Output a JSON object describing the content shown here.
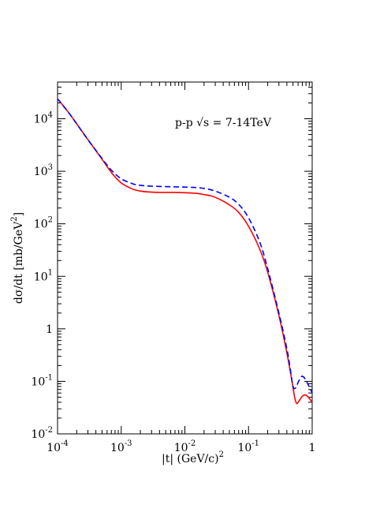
{
  "chart_data": {
    "type": "line",
    "title": "",
    "xlabel": "|t| (GeV/c)",
    "xlabel_sup": "2",
    "ylabel": "dσ/dt [mb/GeV",
    "ylabel_sup": "2",
    "ylabel_end": "]",
    "xscale": "log",
    "yscale": "log",
    "xlim": [
      0.0001,
      1
    ],
    "ylim": [
      0.01,
      50000
    ],
    "grid": false,
    "annotation": "p-p √s = 7-14TeV",
    "x_ticks": [
      {
        "value": 0.0001,
        "base": "10",
        "exp": "-4"
      },
      {
        "value": 0.001,
        "base": "10",
        "exp": "-3"
      },
      {
        "value": 0.01,
        "base": "10",
        "exp": "-2"
      },
      {
        "value": 0.1,
        "base": "10",
        "exp": "-1"
      },
      {
        "value": 1,
        "base": "1",
        "exp": ""
      }
    ],
    "y_ticks": [
      {
        "value": 0.01,
        "base": "10",
        "exp": "-2"
      },
      {
        "value": 0.1,
        "base": "10",
        "exp": "-1"
      },
      {
        "value": 1,
        "base": "1",
        "exp": ""
      },
      {
        "value": 10,
        "base": "10",
        "exp": "1"
      },
      {
        "value": 100,
        "base": "10",
        "exp": "2"
      },
      {
        "value": 1000,
        "base": "10",
        "exp": "3"
      },
      {
        "value": 10000,
        "base": "10",
        "exp": "4"
      }
    ],
    "series": [
      {
        "color": "#ff0000",
        "style": "solid",
        "x": [
          0.0001,
          0.00015,
          0.0002,
          0.0003,
          0.0005,
          0.0007,
          0.001,
          0.0015,
          0.002,
          0.003,
          0.005,
          0.007,
          0.01,
          0.015,
          0.02,
          0.03,
          0.05,
          0.07,
          0.1,
          0.15,
          0.2,
          0.3,
          0.4,
          0.47,
          0.53,
          0.57,
          0.62,
          0.7,
          0.78,
          0.87,
          1.0
        ],
        "y": [
          24000,
          13000,
          8000,
          4000,
          1700,
          950,
          600,
          460,
          420,
          400,
          395,
          395,
          390,
          380,
          360,
          320,
          230,
          165,
          90,
          33,
          12,
          1.8,
          0.35,
          0.12,
          0.05,
          0.038,
          0.042,
          0.052,
          0.055,
          0.05,
          0.04
        ]
      },
      {
        "color": "#0000ee",
        "style": "dashed",
        "x": [
          0.0001,
          0.00015,
          0.0002,
          0.0003,
          0.0005,
          0.0007,
          0.001,
          0.0015,
          0.002,
          0.003,
          0.005,
          0.007,
          0.01,
          0.015,
          0.02,
          0.03,
          0.05,
          0.07,
          0.1,
          0.15,
          0.2,
          0.3,
          0.4,
          0.45,
          0.5,
          0.55,
          0.6,
          0.65,
          0.7,
          0.78,
          0.87,
          1.0
        ],
        "y": [
          24000,
          13000,
          8000,
          4000,
          1750,
          1050,
          720,
          580,
          540,
          520,
          510,
          505,
          500,
          490,
          470,
          420,
          320,
          235,
          130,
          45,
          14,
          2.0,
          0.42,
          0.18,
          0.08,
          0.075,
          0.095,
          0.115,
          0.125,
          0.11,
          0.085,
          0.06
        ]
      }
    ]
  }
}
